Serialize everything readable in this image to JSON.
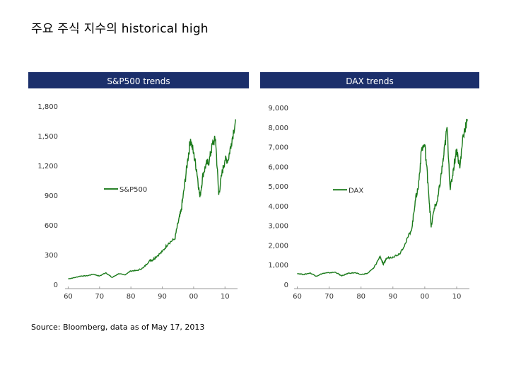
{
  "slide": {
    "title": "주요 주식 지수의 historical high",
    "source": "Source: Bloomberg, data as of May 17, 2013"
  },
  "colors": {
    "line": "#1a7a1a",
    "header": "#1b2f6b",
    "axis": "#999999"
  },
  "chart_data": [
    {
      "type": "line",
      "title": "S&P500 trends",
      "series": [
        {
          "name": "S&P500",
          "x": [
            1960,
            1962,
            1964,
            1966,
            1968,
            1970,
            1972,
            1974,
            1976,
            1978,
            1980,
            1982,
            1984,
            1986,
            1987,
            1988,
            1990,
            1992,
            1994,
            1995,
            1996,
            1997,
            1998,
            1999,
            2000,
            2001,
            2002,
            2003,
            2004,
            2005,
            2006,
            2007,
            2008,
            2009,
            2010,
            2011,
            2012,
            2013.4
          ],
          "values": [
            56,
            68,
            84,
            87,
            103,
            84,
            118,
            69,
            107,
            96,
            136,
            140,
            167,
            242,
            247,
            278,
            330,
            417,
            459,
            616,
            740,
            970,
            1229,
            1469,
            1320,
            1148,
            880,
            1112,
            1212,
            1248,
            1418,
            1468,
            903,
            1115,
            1258,
            1257,
            1426,
            1667
          ]
        }
      ],
      "x_ticks": [
        "60",
        "70",
        "80",
        "90",
        "00",
        "10"
      ],
      "x_tick_values": [
        1960,
        1970,
        1980,
        1990,
        2000,
        2010
      ],
      "y_ticks": [
        "0",
        "300",
        "600",
        "900",
        "1,200",
        "1,500",
        "1,800"
      ],
      "y_tick_values": [
        0,
        300,
        600,
        900,
        1200,
        1500,
        1800
      ],
      "xlim": [
        1959,
        2014
      ],
      "ylim": [
        0,
        1800
      ],
      "legend": "center-left"
    },
    {
      "type": "line",
      "title": "DAX trends",
      "series": [
        {
          "name": "DAX",
          "x": [
            1960,
            1962,
            1964,
            1966,
            1968,
            1970,
            1972,
            1974,
            1976,
            1978,
            1980,
            1982,
            1984,
            1986,
            1987,
            1988,
            1990,
            1992,
            1994,
            1996,
            1997,
            1998,
            1999,
            2000,
            2001,
            2002,
            2003,
            2004,
            2005,
            2006,
            2007,
            2008,
            2009,
            2010,
            2011,
            2012,
            2013.4
          ],
          "values": [
            560,
            500,
            580,
            420,
            560,
            590,
            620,
            430,
            570,
            590,
            500,
            560,
            830,
            1430,
            1000,
            1330,
            1400,
            1550,
            2100,
            2890,
            4250,
            5000,
            6900,
            7100,
            5200,
            2900,
            3900,
            4250,
            5400,
            6600,
            8000,
            4800,
            5900,
            6900,
            5900,
            7600,
            8400
          ]
        }
      ],
      "x_ticks": [
        "60",
        "70",
        "80",
        "90",
        "00",
        "10"
      ],
      "x_tick_values": [
        1960,
        1970,
        1980,
        1990,
        2000,
        2010
      ],
      "y_ticks": [
        "0",
        "1,000",
        "2,000",
        "3,000",
        "4,000",
        "5,000",
        "6,000",
        "7,000",
        "8,000",
        "9,000"
      ],
      "y_tick_values": [
        0,
        1000,
        2000,
        3000,
        4000,
        5000,
        6000,
        7000,
        8000,
        9000
      ],
      "xlim": [
        1959,
        2014
      ],
      "ylim": [
        0,
        9000
      ],
      "legend": "center-left"
    }
  ]
}
